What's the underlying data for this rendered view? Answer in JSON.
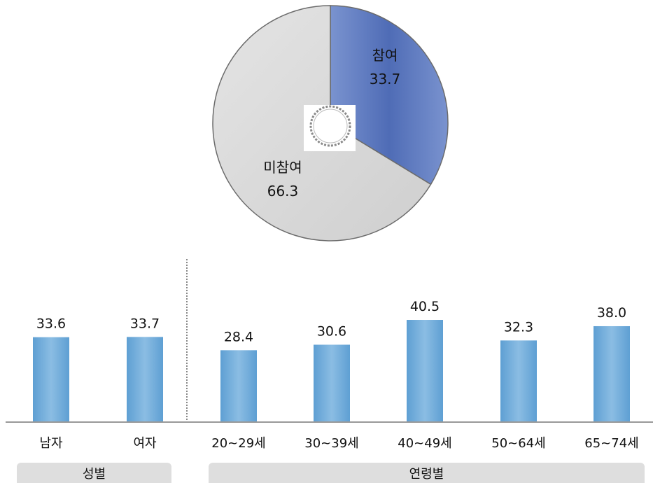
{
  "chart_data": [
    {
      "type": "pie",
      "slices": [
        {
          "label": "참여",
          "value": 33.7,
          "color": "#5b77bd"
        },
        {
          "label": "미참여",
          "value": 66.3,
          "color": "#d7d7d7"
        }
      ]
    },
    {
      "type": "bar",
      "categories": [
        "남자",
        "여자",
        "20~29세",
        "30~39세",
        "40~49세",
        "50~64세",
        "65~74세"
      ],
      "values": [
        33.6,
        33.7,
        28.4,
        30.6,
        40.5,
        32.3,
        38.0
      ],
      "value_labels": [
        "33.6",
        "33.7",
        "28.4",
        "30.6",
        "40.5",
        "32.3",
        "38.0"
      ],
      "groups": [
        {
          "label": "성별",
          "count": 2
        },
        {
          "label": "연령별",
          "count": 5
        }
      ],
      "bar_color": "#6aa6d6",
      "ylim": [
        0,
        45
      ]
    }
  ]
}
